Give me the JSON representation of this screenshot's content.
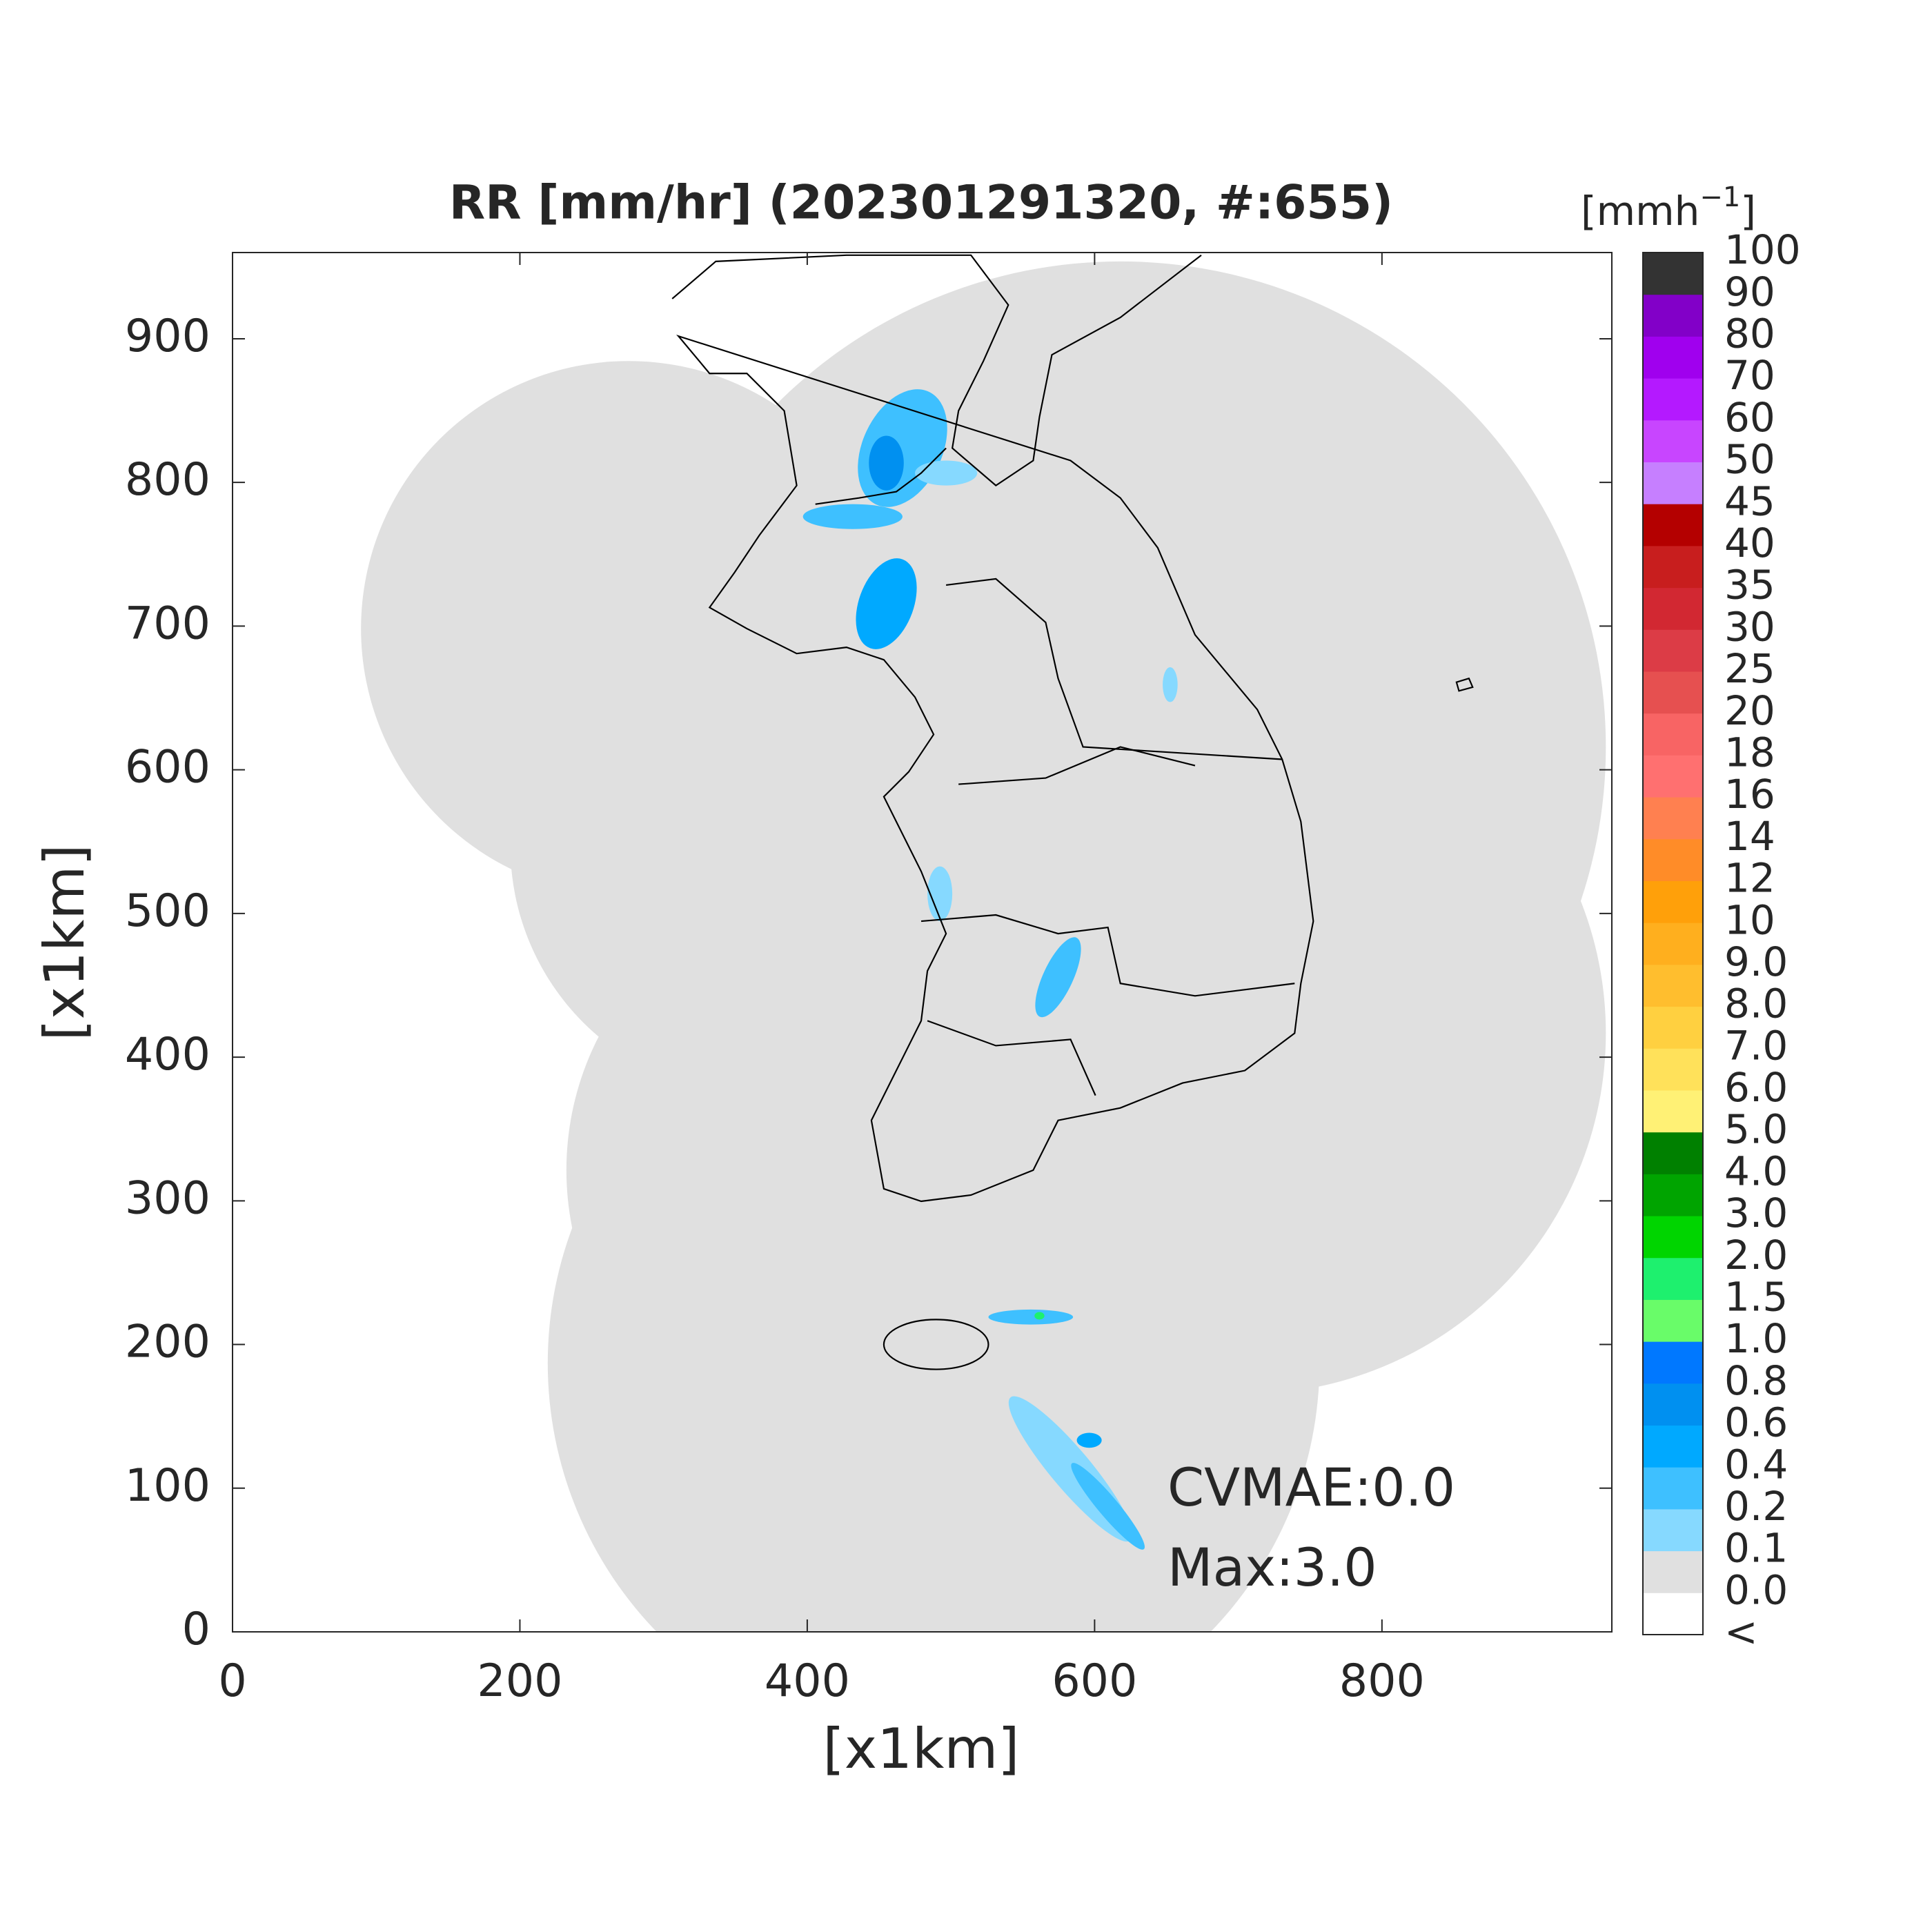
{
  "chart_data": {
    "type": "map",
    "title": "RR [mm/hr] (202301291320, #:655)",
    "xlabel": "[x1km]",
    "ylabel": "[x1km]",
    "xlim": [
      0,
      960
    ],
    "ylim": [
      0,
      960
    ],
    "xticks": [
      0,
      200,
      400,
      600,
      800
    ],
    "yticks": [
      0,
      100,
      200,
      300,
      400,
      500,
      600,
      700,
      800,
      900
    ],
    "annotations": [
      "CVMAE:0.0",
      "Max:3.0"
    ],
    "colorbar": {
      "unit": [
        "[mmh",
        "−1",
        "]"
      ],
      "labels": [
        "<",
        {
          "value": 0,
          "label": "0.0"
        },
        0.1,
        0.2,
        0.4,
        0.6,
        0.8,
        {
          "value": 1,
          "label": "1.0"
        },
        1.5,
        {
          "value": 2,
          "label": "2.0"
        },
        {
          "value": 3,
          "label": "3.0"
        },
        {
          "value": 4,
          "label": "4.0"
        },
        {
          "value": 5,
          "label": "5.0"
        },
        {
          "value": 6,
          "label": "6.0"
        },
        {
          "value": 7,
          "label": "7.0"
        },
        {
          "value": 8,
          "label": "8.0"
        },
        {
          "value": 9,
          "label": "9.0"
        },
        10,
        12,
        14,
        16,
        18,
        20,
        25,
        30,
        35,
        40,
        45,
        50,
        60,
        70,
        80,
        90,
        100
      ],
      "colors": [
        "#ffffff",
        "#e0e0e0",
        "#86d9ff",
        "#3ec0ff",
        "#00a9ff",
        "#0090f0",
        "#0078ff",
        "#69fc69",
        "#1ef06e",
        "#00d500",
        "#00a400",
        "#008000",
        "#fff175",
        "#ffe15a",
        "#ffd040",
        "#ffbe2e",
        "#ffaf1e",
        "#ffa00a",
        "#ff8c28",
        "#ff8050",
        "#ff7070",
        "#f86464",
        "#e65050",
        "#dc3c46",
        "#d22832",
        "#c81e1e",
        "#b40000",
        "#c67fff",
        "#c845ff",
        "#b419ff",
        "#a000ee",
        "#8200c8",
        "#333333"
      ]
    }
  }
}
